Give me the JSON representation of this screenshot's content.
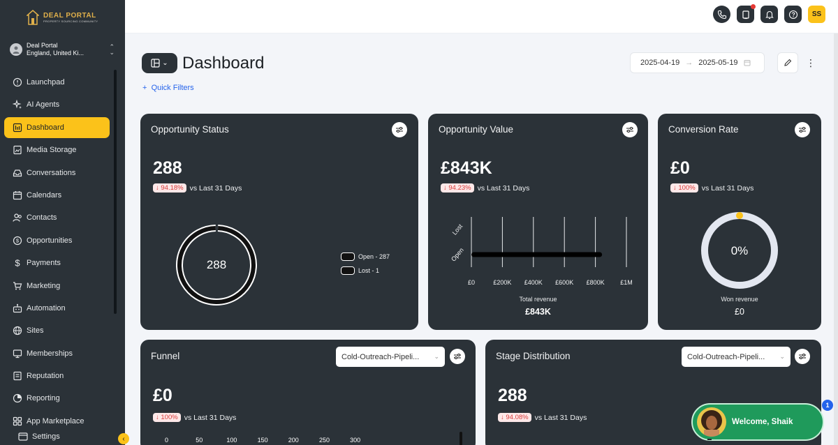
{
  "brand": {
    "title": "DEAL PORTAL",
    "subtitle": "PROPERTY SOURCING COMMUNITY",
    "accent": "#fbc21a",
    "sidebar_bg": "#2b3238"
  },
  "account": {
    "name": "Deal Portal",
    "location": "England, United Ki..."
  },
  "nav": [
    {
      "label": "Launchpad",
      "icon": "info-circle-icon"
    },
    {
      "label": "AI Agents",
      "icon": "sparkle-icon"
    },
    {
      "label": "Dashboard",
      "icon": "dashboard-icon",
      "active": true
    },
    {
      "label": "Media Storage",
      "icon": "media-icon"
    },
    {
      "label": "Conversations",
      "icon": "inbox-icon"
    },
    {
      "label": "Calendars",
      "icon": "calendar-icon"
    },
    {
      "label": "Contacts",
      "icon": "contacts-icon"
    },
    {
      "label": "Opportunities",
      "icon": "dollar-circle-icon"
    },
    {
      "label": "Payments",
      "icon": "dollar-icon"
    },
    {
      "label": "Marketing",
      "icon": "cart-icon"
    },
    {
      "label": "Automation",
      "icon": "automation-icon"
    },
    {
      "label": "Sites",
      "icon": "globe-icon"
    },
    {
      "label": "Memberships",
      "icon": "membership-icon"
    },
    {
      "label": "Reputation",
      "icon": "reputation-icon"
    },
    {
      "label": "Reporting",
      "icon": "reporting-icon"
    },
    {
      "label": "App Marketplace",
      "icon": "marketplace-icon"
    }
  ],
  "settings_label": "Settings",
  "topbar": {
    "user_initials": "SS"
  },
  "header": {
    "title": "Dashboard",
    "quick_filters": "Quick Filters",
    "date_start": "2025-04-19",
    "date_end": "2025-05-19"
  },
  "cards": {
    "opportunity_status": {
      "title": "Opportunity Status",
      "value": "288",
      "delta": "94.18%",
      "delta_label": "vs Last 31 Days",
      "center_label": "288",
      "legend": [
        "Open - 287",
        "Lost - 1"
      ]
    },
    "opportunity_value": {
      "title": "Opportunity Value",
      "value": "£843K",
      "delta": "94.23%",
      "delta_label": "vs Last 31 Days",
      "total_label": "Total revenue",
      "total_value": "£843K"
    },
    "conversion_rate": {
      "title": "Conversion Rate",
      "value": "£0",
      "delta": "100%",
      "delta_label": "vs Last 31 Days",
      "center_label": "0%",
      "won_label": "Won revenue",
      "won_value": "£0"
    },
    "funnel": {
      "title": "Funnel",
      "pipeline": "Cold-Outreach-Pipeli...",
      "value": "£0",
      "delta": "100%",
      "delta_label": "vs Last 31 Days",
      "ticks": [
        "0",
        "50",
        "100",
        "150",
        "200",
        "250",
        "300"
      ]
    },
    "stage_distribution": {
      "title": "Stage Distribution",
      "pipeline": "Cold-Outreach-Pipeli...",
      "value": "288",
      "delta": "94.08%",
      "delta_label": "vs Last 31 Days"
    }
  },
  "chart_data": [
    {
      "type": "pie",
      "categories": [
        "Open",
        "Lost"
      ],
      "values": [
        287,
        1
      ]
    },
    {
      "type": "bar",
      "orientation": "horizontal",
      "categories": [
        "Lost",
        "Open"
      ],
      "values": [
        0,
        843000
      ],
      "xticks": [
        "£0",
        "£200K",
        "£400K",
        "£600K",
        "£800K",
        "£1M"
      ],
      "xlim": [
        0,
        1000000
      ]
    },
    {
      "type": "pie",
      "categories": [
        "Won"
      ],
      "values": [
        0
      ]
    }
  ],
  "welcome": {
    "text": "Welcome, Shaik",
    "badge": "1"
  }
}
